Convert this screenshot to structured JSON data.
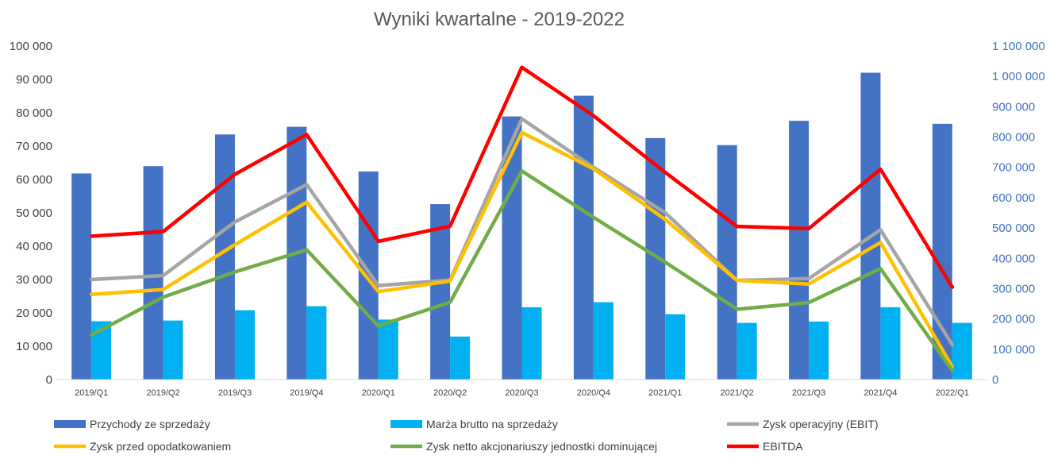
{
  "chart_data": {
    "type": "bar",
    "title": "Wyniki kwartalne - 2019-2022",
    "categories": [
      "2019/Q1",
      "2019/Q2",
      "2019/Q3",
      "2019/Q4",
      "2020/Q1",
      "2020/Q2",
      "2020/Q3",
      "2020/Q4",
      "2021/Q1",
      "2021/Q2",
      "2021/Q3",
      "2021/Q4",
      "2022/Q1"
    ],
    "y_left": {
      "range": [
        0,
        100000
      ],
      "ticks": [
        "0",
        "10 000",
        "20 000",
        "30 000",
        "40 000",
        "50 000",
        "60 000",
        "70 000",
        "80 000",
        "90 000",
        "100 000"
      ],
      "color": "#404040"
    },
    "y_right": {
      "range": [
        0,
        1100000
      ],
      "ticks": [
        "0",
        "100 000",
        "200 000",
        "300 000",
        "400 000",
        "500 000",
        "600 000",
        "700 000",
        "800 000",
        "900 000",
        "1 000 000",
        "1 100 000"
      ],
      "color": "#4472C4"
    },
    "series": [
      {
        "name": "Przychody ze sprzedaży",
        "type": "bar",
        "axis": "left",
        "color": "#4472C4",
        "values": [
          61800,
          64000,
          73500,
          75800,
          62400,
          52600,
          78900,
          85100,
          72400,
          70300,
          77600,
          92000,
          76700
        ]
      },
      {
        "name": "Marża brutto na sprzedaży",
        "type": "bar",
        "axis": "left",
        "color": "#00B0F0",
        "values": [
          17500,
          17700,
          20800,
          22000,
          18000,
          12900,
          21700,
          23200,
          19600,
          17000,
          17400,
          21700,
          17000
        ]
      },
      {
        "name": "Zysk operacyjny (EBIT)",
        "type": "line",
        "axis": "right",
        "color": "#A5A5A5",
        "values": [
          330000,
          343000,
          520000,
          643000,
          310000,
          328000,
          860000,
          700000,
          550000,
          327000,
          333000,
          494000,
          115000
        ]
      },
      {
        "name": "Zysk przed opodatkowaniem",
        "type": "line",
        "axis": "right",
        "color": "#FFC000",
        "values": [
          281000,
          297000,
          445000,
          585000,
          290000,
          325000,
          815000,
          695000,
          528000,
          327000,
          315000,
          452000,
          42000
        ]
      },
      {
        "name": "Zysk netto akcjonariuszy jednostki dominującej",
        "type": "line",
        "axis": "right",
        "color": "#70AD47",
        "values": [
          147000,
          272000,
          355000,
          428000,
          177000,
          255000,
          688000,
          535000,
          387000,
          232000,
          254000,
          366000,
          30000
        ]
      },
      {
        "name": "EBITDA",
        "type": "line",
        "axis": "right",
        "color": "#FF0000",
        "values": [
          473000,
          488000,
          677000,
          808000,
          456000,
          506000,
          1030000,
          870000,
          683000,
          505000,
          498000,
          694000,
          305000
        ]
      }
    ],
    "legend": "bottom",
    "grid": false
  }
}
